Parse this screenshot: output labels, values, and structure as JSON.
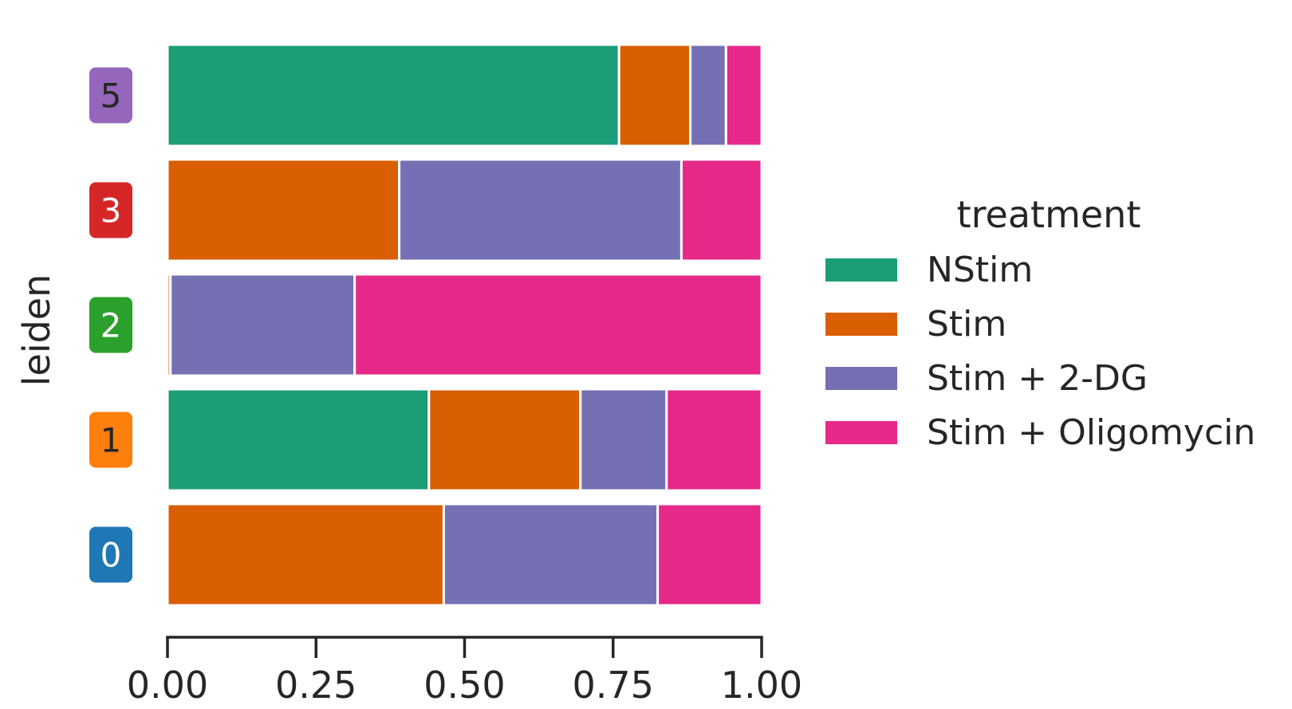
{
  "chart_data": {
    "type": "bar",
    "orientation": "horizontal",
    "stacked": true,
    "normalized": true,
    "ylabel": "leiden",
    "xlabel": "",
    "xlim": [
      0,
      1
    ],
    "xticks": [
      "0.00",
      "0.25",
      "0.50",
      "0.75",
      "1.00"
    ],
    "categories": [
      "5",
      "3",
      "2",
      "1",
      "0"
    ],
    "category_colors": [
      "#9467bd",
      "#d62728",
      "#2ca02c",
      "#ff7f0e",
      "#1f77b4"
    ],
    "category_text_colors": [
      "#262626",
      "#ffffff",
      "#ffffff",
      "#262626",
      "#ffffff"
    ],
    "legend": {
      "title": "treatment",
      "position": "right"
    },
    "series": [
      {
        "name": "NStim",
        "color": "#1b9e77",
        "values": [
          0.76,
          0.0,
          0.0,
          0.44,
          0.0
        ]
      },
      {
        "name": "Stim",
        "color": "#d95f02",
        "values": [
          0.12,
          0.39,
          0.005,
          0.255,
          0.465
        ]
      },
      {
        "name": "Stim + 2-DG",
        "color": "#7570b3",
        "values": [
          0.06,
          0.475,
          0.31,
          0.145,
          0.36
        ]
      },
      {
        "name": "Stim + Oligomycin",
        "color": "#e7298a",
        "values": [
          0.06,
          0.135,
          0.685,
          0.16,
          0.175
        ]
      }
    ]
  }
}
